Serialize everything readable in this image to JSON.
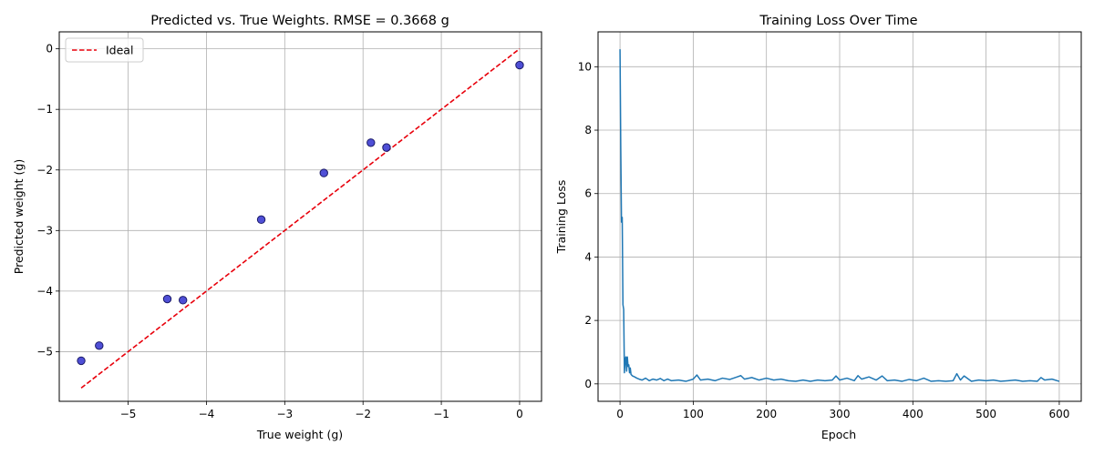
{
  "chart_data": [
    {
      "type": "scatter",
      "title": "Predicted vs. True Weights. RMSE = 0.3668 g",
      "xlabel": "True weight (g)",
      "ylabel": "Predicted weight (g)",
      "xlim": [
        -5.88,
        0.28
      ],
      "ylim": [
        -5.82,
        0.28
      ],
      "xticks": [
        -5,
        -4,
        -3,
        -2,
        -1,
        0
      ],
      "yticks": [
        -5,
        -4,
        -3,
        -2,
        -1,
        0
      ],
      "xtick_labels": [
        "−5",
        "−4",
        "−3",
        "−2",
        "−1",
        "0"
      ],
      "ytick_labels": [
        "−5",
        "−4",
        "−3",
        "−2",
        "−1",
        "0"
      ],
      "grid": true,
      "legend": {
        "placement": "top-left",
        "entries": [
          {
            "label": "Ideal",
            "color": "#e8000b",
            "style": "dashed"
          }
        ]
      },
      "points": {
        "x": [
          -5.6,
          -5.37,
          -4.5,
          -4.3,
          -3.3,
          -2.5,
          -1.9,
          -1.7,
          0.0
        ],
        "y": [
          -5.15,
          -4.9,
          -4.13,
          -4.15,
          -2.82,
          -2.05,
          -1.55,
          -1.63,
          -0.27
        ],
        "color": "#3c3cd2",
        "edge_color": "#1a1a66"
      },
      "ideal_line": {
        "x": [
          -5.6,
          0.0
        ],
        "y": [
          -5.6,
          0.0
        ],
        "color": "#e8000b"
      }
    },
    {
      "type": "line",
      "title": "Training Loss Over Time",
      "xlabel": "Epoch",
      "ylabel": "Training Loss",
      "xlim": [
        -30,
        630
      ],
      "ylim": [
        -0.55,
        11.1
      ],
      "xticks": [
        0,
        100,
        200,
        300,
        400,
        500,
        600
      ],
      "yticks": [
        0,
        2,
        4,
        6,
        8,
        10
      ],
      "xtick_labels": [
        "0",
        "100",
        "200",
        "300",
        "400",
        "500",
        "600"
      ],
      "ytick_labels": [
        "0",
        "2",
        "4",
        "6",
        "8",
        "10"
      ],
      "grid": true,
      "series": [
        {
          "color": "#1f77b4",
          "x": [
            0,
            1,
            2,
            3,
            4,
            5,
            6,
            7,
            8,
            9,
            10,
            11,
            12,
            13,
            14,
            15,
            17,
            20,
            23,
            26,
            30,
            35,
            40,
            45,
            50,
            55,
            60,
            65,
            70,
            80,
            90,
            100,
            105,
            110,
            120,
            130,
            140,
            150,
            160,
            165,
            170,
            180,
            190,
            200,
            210,
            220,
            230,
            240,
            250,
            260,
            270,
            280,
            290,
            295,
            300,
            310,
            320,
            325,
            330,
            340,
            350,
            358,
            365,
            375,
            385,
            395,
            405,
            415,
            425,
            435,
            445,
            455,
            460,
            465,
            470,
            480,
            490,
            500,
            510,
            520,
            530,
            540,
            550,
            560,
            570,
            575,
            580,
            590,
            600
          ],
          "y": [
            10.55,
            7.5,
            5.1,
            5.25,
            2.5,
            2.35,
            0.35,
            0.75,
            0.85,
            0.4,
            0.85,
            0.55,
            0.6,
            0.35,
            0.5,
            0.3,
            0.25,
            0.22,
            0.18,
            0.15,
            0.12,
            0.18,
            0.1,
            0.15,
            0.12,
            0.17,
            0.1,
            0.15,
            0.1,
            0.12,
            0.08,
            0.15,
            0.28,
            0.12,
            0.15,
            0.1,
            0.18,
            0.14,
            0.22,
            0.26,
            0.15,
            0.2,
            0.12,
            0.18,
            0.12,
            0.15,
            0.1,
            0.08,
            0.12,
            0.08,
            0.12,
            0.1,
            0.12,
            0.25,
            0.12,
            0.18,
            0.1,
            0.26,
            0.15,
            0.22,
            0.12,
            0.25,
            0.1,
            0.12,
            0.08,
            0.14,
            0.1,
            0.18,
            0.08,
            0.1,
            0.08,
            0.1,
            0.32,
            0.12,
            0.25,
            0.08,
            0.12,
            0.1,
            0.12,
            0.08,
            0.1,
            0.12,
            0.08,
            0.1,
            0.08,
            0.2,
            0.12,
            0.15,
            0.08
          ]
        }
      ]
    }
  ]
}
